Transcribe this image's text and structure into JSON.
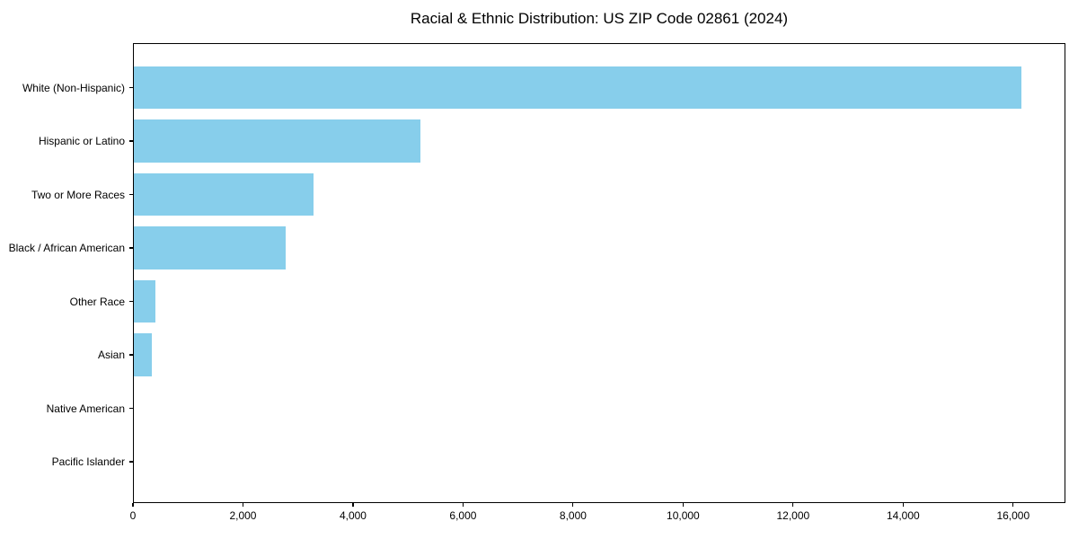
{
  "title": "Racial & Ethnic Distribution: US ZIP Code 02861 (2024)",
  "colors": {
    "bar": "#87CEEB",
    "axis": "#000000",
    "text": "#000000",
    "background": "#FFFFFF"
  },
  "chart_data": {
    "type": "bar",
    "orientation": "horizontal",
    "title": "Racial & Ethnic Distribution: US ZIP Code 02861 (2024)",
    "categories": [
      "White (Non-Hispanic)",
      "Hispanic or Latino",
      "Two or More Races",
      "Black / African American",
      "Other Race",
      "Asian",
      "Native American",
      "Pacific Islander"
    ],
    "values": [
      16130,
      5210,
      3260,
      2760,
      390,
      330,
      0,
      0
    ],
    "xlabel": "",
    "ylabel": "",
    "xlim": [
      0,
      16950
    ],
    "xticks": [
      0,
      2000,
      4000,
      6000,
      8000,
      10000,
      12000,
      14000,
      16000
    ],
    "xtick_labels": [
      "0",
      "2,000",
      "4,000",
      "6,000",
      "8,000",
      "10,000",
      "12,000",
      "14,000",
      "16,000"
    ],
    "grid": false,
    "legend_position": "none",
    "frame": "full-box"
  }
}
